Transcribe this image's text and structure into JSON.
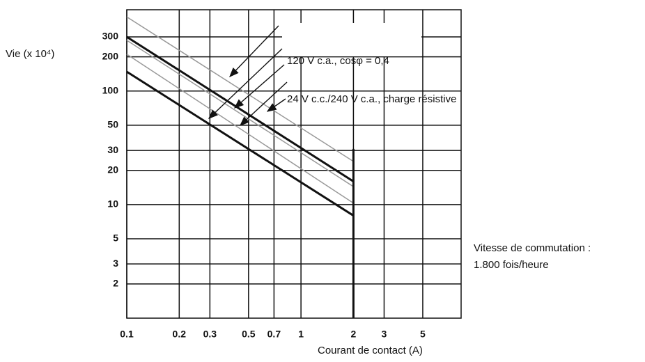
{
  "chart_data": {
    "type": "line",
    "xlabel": "Courant de contact (A)",
    "ylabel": "Vie (x 10⁴)",
    "x_scale": "log",
    "y_scale": "log",
    "xlim": [
      0.1,
      8.3
    ],
    "ylim": [
      1,
      520
    ],
    "xticks": [
      0.1,
      0.2,
      0.3,
      0.5,
      0.7,
      1,
      2,
      3,
      5
    ],
    "yticks": [
      2,
      3,
      5,
      10,
      20,
      30,
      50,
      100,
      200,
      300
    ],
    "grid": true,
    "vline": 2,
    "series": [
      {
        "color": "#999999",
        "linewidth": 1.5,
        "x": [
          0.1,
          2
        ],
        "values": [
          450,
          24
        ]
      },
      {
        "color": "#111111",
        "linewidth": 3,
        "x": [
          0.1,
          2
        ],
        "values": [
          300,
          16
        ]
      },
      {
        "color": "#999999",
        "linewidth": 1.5,
        "x": [
          0.1,
          2
        ],
        "values": [
          280,
          14.4
        ]
      },
      {
        "color": "#999999",
        "linewidth": 1.5,
        "x": [
          0.1,
          2
        ],
        "values": [
          211,
          10.3
        ]
      },
      {
        "color": "#111111",
        "linewidth": 3,
        "x": [
          0.1,
          2
        ],
        "values": [
          148,
          8
        ]
      }
    ],
    "annotations": [
      "120 V c.a., cosφ = 0,4",
      "24 V c.c./240 V c.a., charge résistive"
    ],
    "note": [
      "Vitesse de commutation :",
      "1.800 fois/heure"
    ]
  }
}
